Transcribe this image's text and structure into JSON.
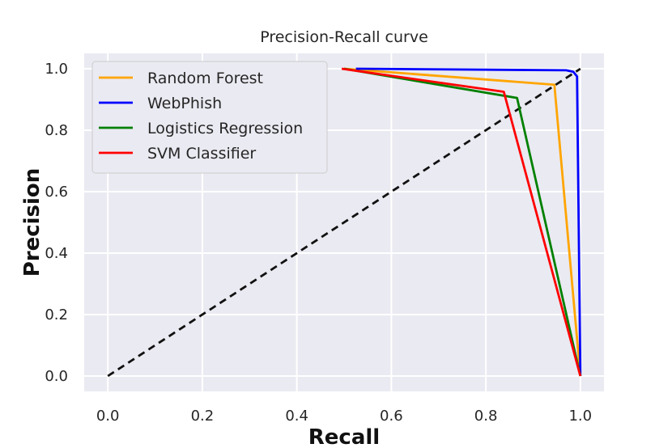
{
  "chart_data": {
    "type": "line",
    "title": "Precision-Recall curve",
    "xlabel": "Recall",
    "ylabel": "Precision",
    "xlim": [
      -0.05,
      1.05
    ],
    "ylim": [
      -0.05,
      1.05
    ],
    "xticks": [
      "0.0",
      "0.2",
      "0.4",
      "0.6",
      "0.8",
      "1.0"
    ],
    "yticks": [
      "0.0",
      "0.2",
      "0.4",
      "0.6",
      "0.8",
      "1.0"
    ],
    "grid": true,
    "legend_position": "top-left",
    "series": [
      {
        "name": "Random Forest",
        "color": "#ffa500",
        "x": [
          0.5,
          0.945,
          1.0
        ],
        "y": [
          1.0,
          0.948,
          0.0
        ]
      },
      {
        "name": "WebPhish",
        "color": "#0000ff",
        "x": [
          0.525,
          0.97,
          0.985,
          0.993,
          1.0
        ],
        "y": [
          1.0,
          0.995,
          0.99,
          0.975,
          0.0
        ]
      },
      {
        "name": "Logistics Regression",
        "color": "#008000",
        "x": [
          0.5,
          0.866,
          1.0
        ],
        "y": [
          1.0,
          0.905,
          0.0
        ]
      },
      {
        "name": "SVM Classifier",
        "color": "#ff0000",
        "x": [
          0.495,
          0.838,
          1.0
        ],
        "y": [
          1.0,
          0.925,
          0.0
        ]
      }
    ],
    "reference_line": {
      "style": "dashed",
      "color": "#111111",
      "x": [
        0.0,
        1.0
      ],
      "y": [
        0.0,
        1.0
      ]
    }
  }
}
